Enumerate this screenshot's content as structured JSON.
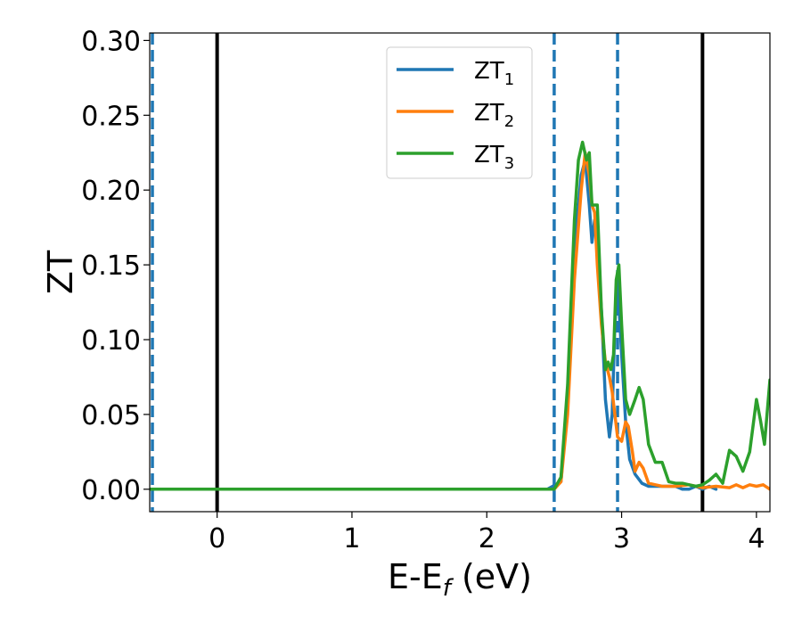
{
  "chart_data": {
    "type": "line",
    "title": "",
    "xlabel": "E-E",
    "xlabel_sub": "f",
    "xlabel_unit": " (eV)",
    "ylabel": "ZT",
    "xlim": [
      -0.5,
      4.1
    ],
    "ylim": [
      -0.015,
      0.305
    ],
    "x_ticks": [
      0,
      1,
      2,
      3,
      4
    ],
    "x_tick_labels": [
      "0",
      "1",
      "2",
      "3",
      "4"
    ],
    "y_ticks": [
      0.0,
      0.05,
      0.1,
      0.15,
      0.2,
      0.25,
      0.3
    ],
    "y_tick_labels": [
      "0.00",
      "0.05",
      "0.10",
      "0.15",
      "0.20",
      "0.25",
      "0.30"
    ],
    "grid": false,
    "legend_placement": "upper-center",
    "vertical_lines": [
      {
        "x": -0.48,
        "style": "dashed",
        "color": "#1f77b4"
      },
      {
        "x": 0.0,
        "style": "solid",
        "color": "#000000"
      },
      {
        "x": 2.5,
        "style": "dashed",
        "color": "#1f77b4"
      },
      {
        "x": 2.97,
        "style": "dashed",
        "color": "#1f77b4"
      },
      {
        "x": 3.6,
        "style": "solid",
        "color": "#000000"
      }
    ],
    "series": [
      {
        "name": "ZT",
        "name_sub": "1",
        "color": "#1f77b4",
        "x": [
          -0.5,
          2.3,
          2.45,
          2.55,
          2.6,
          2.65,
          2.7,
          2.73,
          2.76,
          2.78,
          2.8,
          2.82,
          2.85,
          2.88,
          2.91,
          2.93,
          2.95,
          2.97,
          3.0,
          3.03,
          3.06,
          3.1,
          3.15,
          3.2,
          3.3,
          3.4,
          3.45,
          3.5,
          3.55,
          3.6,
          3.65,
          3.7
        ],
        "y": [
          0.0,
          0.0,
          0.0,
          0.005,
          0.06,
          0.16,
          0.21,
          0.22,
          0.19,
          0.165,
          0.18,
          0.16,
          0.12,
          0.06,
          0.035,
          0.05,
          0.11,
          0.14,
          0.09,
          0.045,
          0.02,
          0.01,
          0.004,
          0.002,
          0.002,
          0.002,
          0.0,
          0.0,
          0.002,
          0.0,
          0.002,
          0.0
        ]
      },
      {
        "name": "ZT",
        "name_sub": "2",
        "color": "#ff7f0e",
        "x": [
          -0.5,
          2.3,
          2.5,
          2.55,
          2.6,
          2.65,
          2.7,
          2.73,
          2.76,
          2.78,
          2.8,
          2.82,
          2.85,
          2.88,
          2.91,
          2.93,
          2.95,
          2.97,
          3.0,
          3.03,
          3.05,
          3.08,
          3.1,
          3.13,
          3.16,
          3.2,
          3.25,
          3.3,
          3.4,
          3.5,
          3.6,
          3.7,
          3.8,
          3.85,
          3.9,
          3.95,
          4.0,
          4.05,
          4.1
        ],
        "y": [
          0.0,
          0.0,
          0.0,
          0.005,
          0.05,
          0.14,
          0.2,
          0.225,
          0.21,
          0.19,
          0.185,
          0.15,
          0.11,
          0.085,
          0.075,
          0.065,
          0.05,
          0.035,
          0.032,
          0.045,
          0.042,
          0.025,
          0.012,
          0.018,
          0.014,
          0.004,
          0.003,
          0.002,
          0.002,
          0.003,
          0.001,
          0.002,
          0.001,
          0.003,
          0.001,
          0.003,
          0.002,
          0.003,
          0.0
        ]
      },
      {
        "name": "ZT",
        "name_sub": "3",
        "color": "#2ca02c",
        "x": [
          -0.5,
          2.3,
          2.5,
          2.55,
          2.6,
          2.65,
          2.68,
          2.71,
          2.74,
          2.76,
          2.78,
          2.8,
          2.82,
          2.85,
          2.88,
          2.9,
          2.92,
          2.94,
          2.96,
          2.98,
          3.0,
          3.03,
          3.06,
          3.1,
          3.13,
          3.16,
          3.2,
          3.25,
          3.3,
          3.35,
          3.4,
          3.45,
          3.5,
          3.55,
          3.6,
          3.65,
          3.7,
          3.75,
          3.8,
          3.85,
          3.9,
          3.95,
          4.0,
          4.03,
          4.06,
          4.1
        ],
        "y": [
          0.0,
          0.0,
          0.0,
          0.008,
          0.07,
          0.18,
          0.22,
          0.232,
          0.22,
          0.225,
          0.19,
          0.19,
          0.19,
          0.12,
          0.08,
          0.085,
          0.08,
          0.09,
          0.14,
          0.15,
          0.11,
          0.06,
          0.05,
          0.06,
          0.068,
          0.06,
          0.03,
          0.018,
          0.018,
          0.005,
          0.004,
          0.004,
          0.003,
          0.002,
          0.003,
          0.006,
          0.01,
          0.004,
          0.026,
          0.022,
          0.012,
          0.025,
          0.06,
          0.046,
          0.03,
          0.073
        ]
      }
    ]
  }
}
